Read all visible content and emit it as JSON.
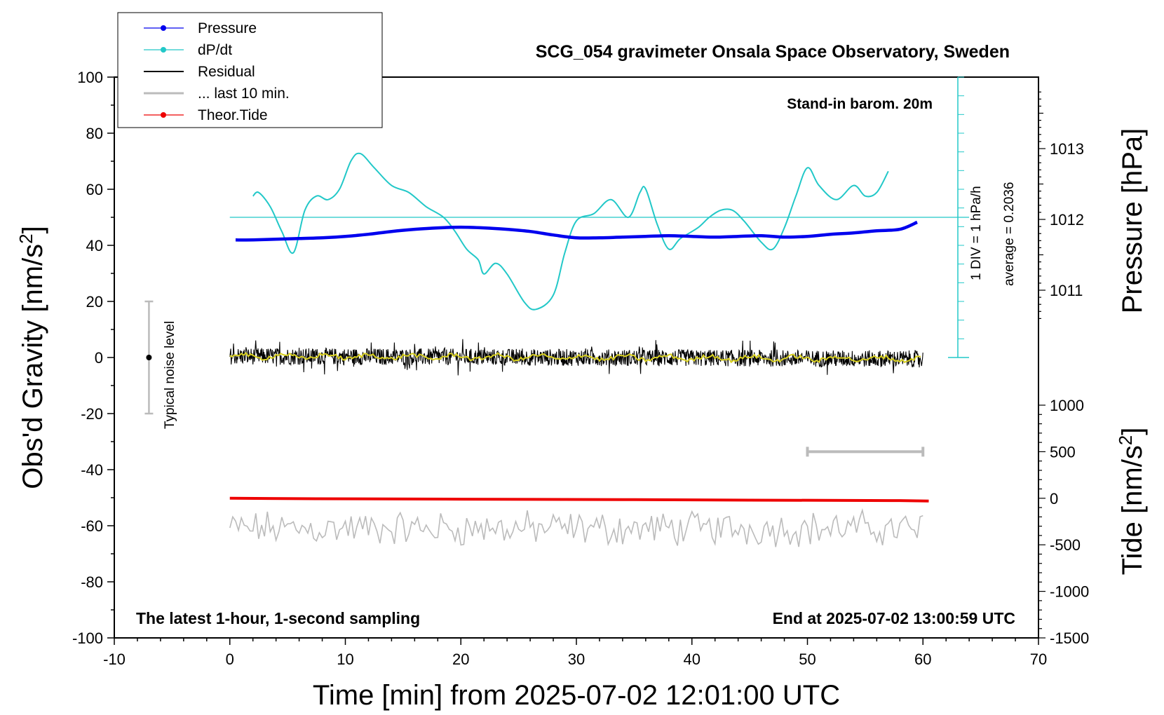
{
  "chart_data": {
    "type": "line",
    "title": "SCG_054 gravimeter Onsala Space Observatory, Sweden",
    "xlabel": "Time [min] from 2025-07-02 12:01:00 UTC",
    "ylabel": "Obs'd Gravity [nm/s",
    "ylabel_sup": "2",
    "ylabel_end": "]",
    "y2label": "Pressure [hPa]",
    "y3label": "Tide [nm/s",
    "y3label_sup": "2",
    "y3label_end": "]",
    "xlim": [
      -10,
      70
    ],
    "ylim": [
      -100,
      100
    ],
    "x_ticks": [
      "-10",
      "0",
      "10",
      "20",
      "30",
      "40",
      "50",
      "60",
      "70"
    ],
    "y_ticks": [
      "100",
      "80",
      "60",
      "40",
      "20",
      "0",
      "-20",
      "-40",
      "-60",
      "-80",
      "-100"
    ],
    "pressure_ticks": [
      "1013",
      "1012",
      "1011"
    ],
    "pressure_tick_values": [
      1013,
      1012,
      1011
    ],
    "tide_ticks": [
      "1000",
      "500",
      "0",
      "-500",
      "-1000",
      "-1500"
    ],
    "tide_tick_values": [
      1000,
      500,
      0,
      -500,
      -1000,
      -1500
    ],
    "grid": false,
    "legend_position": "top-left",
    "legend": [
      {
        "name": "Pressure",
        "color": "#0000ee",
        "marker": true
      },
      {
        "name": "dP/dt",
        "color": "#22c8c8",
        "marker": true
      },
      {
        "name": "Residual",
        "color": "#000000",
        "marker": false
      },
      {
        "name": "... last 10 min.",
        "color": "#bbbbbb",
        "marker": false
      },
      {
        "name": "Theor.Tide",
        "color": "#ee0000",
        "marker": true
      }
    ],
    "annotations": {
      "barometer": "Stand-in barom. 20m",
      "div": "1 DIV = 1 hPa/h",
      "average": "average = 0.2036",
      "noise": "Typical noise level",
      "sampling": "The latest 1-hour, 1-second sampling",
      "end": "End at 2025-07-02 13:00:59 UTC"
    },
    "series": [
      {
        "name": "Pressure",
        "color": "#0000ee",
        "axis": "pressure",
        "x": [
          0.5,
          2,
          4,
          6,
          8,
          10,
          12,
          14,
          16,
          18,
          20,
          22,
          24,
          26,
          28,
          30,
          32,
          34,
          36,
          38,
          40,
          42,
          44,
          46,
          48,
          50,
          52,
          54,
          56,
          58,
          59.5
        ],
        "values": [
          1011.71,
          1011.71,
          1011.72,
          1011.73,
          1011.74,
          1011.76,
          1011.79,
          1011.83,
          1011.86,
          1011.88,
          1011.89,
          1011.88,
          1011.86,
          1011.83,
          1011.78,
          1011.74,
          1011.74,
          1011.75,
          1011.76,
          1011.77,
          1011.76,
          1011.75,
          1011.76,
          1011.77,
          1011.75,
          1011.76,
          1011.79,
          1011.81,
          1011.84,
          1011.86,
          1011.96
        ]
      },
      {
        "name": "dP/dt",
        "color": "#22c8c8",
        "axis": "rate",
        "x": [
          2,
          2.5,
          3.5,
          4.5,
          5.5,
          6.5,
          7.5,
          8.5,
          9.5,
          10.5,
          11.3,
          12.5,
          14,
          15.5,
          17,
          18.5,
          19.5,
          20.5,
          21.5,
          22,
          23,
          24,
          25.5,
          26.5,
          28,
          29,
          30,
          31.5,
          33,
          34.5,
          35.5,
          36,
          37,
          38,
          39,
          40.5,
          41.5,
          42.5,
          43.5,
          44.5,
          46,
          47,
          48,
          49,
          50,
          51,
          52.5,
          54,
          55,
          56,
          57
        ],
        "values": [
          0.6,
          0.7,
          0.3,
          -0.4,
          -1.0,
          0.2,
          0.6,
          0.5,
          0.8,
          1.6,
          1.8,
          1.4,
          0.9,
          0.7,
          0.3,
          0.0,
          -0.4,
          -0.9,
          -1.2,
          -1.6,
          -1.3,
          -1.6,
          -2.4,
          -2.6,
          -2.2,
          -1.0,
          -0.1,
          0.1,
          0.5,
          0.0,
          0.7,
          0.8,
          -0.2,
          -0.9,
          -0.6,
          -0.3,
          0.0,
          0.2,
          0.2,
          -0.1,
          -0.7,
          -0.9,
          -0.3,
          0.6,
          1.4,
          0.9,
          0.5,
          0.9,
          0.6,
          0.7,
          1.3
        ]
      },
      {
        "name": "Residual",
        "color": "#000000",
        "axis": "gravity",
        "x": [
          0,
          60
        ],
        "values": [
          0.5,
          -0.5
        ]
      },
      {
        "name": "... last 10 min.",
        "color": "#bbbbbb",
        "axis": "gravity",
        "x": [
          0,
          60
        ],
        "values": [
          -61,
          -61
        ]
      },
      {
        "name": "Theor.Tide",
        "color": "#ee0000",
        "axis": "tide",
        "x": [
          0,
          7.5,
          20,
          35,
          45,
          58,
          60.5
        ],
        "values": [
          0,
          -5,
          -10,
          -15,
          -20,
          -25,
          -30
        ]
      }
    ],
    "noise_bar": {
      "x": -7,
      "center": 0,
      "low": -20,
      "high": 20
    },
    "ten_min_bar": {
      "x_start": 50,
      "x_end": 60
    },
    "dpdt_zero_level": 50
  }
}
